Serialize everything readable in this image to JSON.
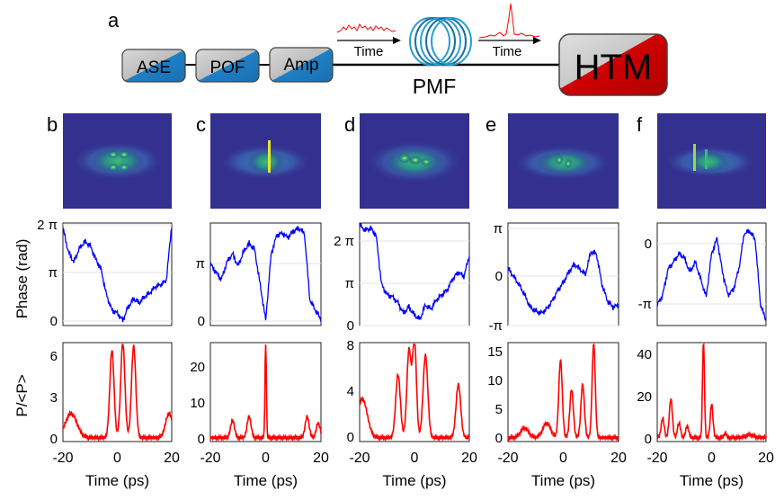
{
  "figure": {
    "setup": {
      "panel_label": "a",
      "blocks": [
        {
          "id": "ase",
          "label": "ASE"
        },
        {
          "id": "pof",
          "label": "POF"
        },
        {
          "id": "amp",
          "label": "Amp"
        }
      ],
      "htm_label": "HTM",
      "pmf_label": "PMF",
      "time_label_in": "Time",
      "time_label_out": "Time"
    },
    "panels": [
      {
        "label": "b",
        "phase_ticks": [
          "2 π",
          "π",
          "0"
        ],
        "power_ticks": [
          "6",
          "3",
          "0"
        ]
      },
      {
        "label": "c",
        "phase_ticks": [
          "π",
          "0"
        ],
        "power_ticks": [
          "20",
          "10",
          "0"
        ]
      },
      {
        "label": "d",
        "phase_ticks": [
          "2 π",
          "π",
          "0"
        ],
        "power_ticks": [
          "8",
          "4",
          "0"
        ]
      },
      {
        "label": "e",
        "phase_ticks": [
          "π",
          "0",
          "-π"
        ],
        "power_ticks": [
          "15",
          "10",
          "5",
          "0"
        ]
      },
      {
        "label": "f",
        "phase_ticks": [
          "0",
          "-π"
        ],
        "power_ticks": [
          "40",
          "20",
          "0"
        ]
      }
    ],
    "axes": {
      "phase_ylabel": "Phase (rad)",
      "power_ylabel": "P/<P>",
      "xlabel": "Time (ps)",
      "x_ticks": [
        "-20",
        "0",
        "20"
      ]
    },
    "colors": {
      "phase_trace": "#0000ff",
      "power_trace": "#ff0000",
      "spectrogram_bg": "#33308f",
      "block_blue": "#1f7fc6",
      "htm_red": "#d10000"
    }
  }
}
